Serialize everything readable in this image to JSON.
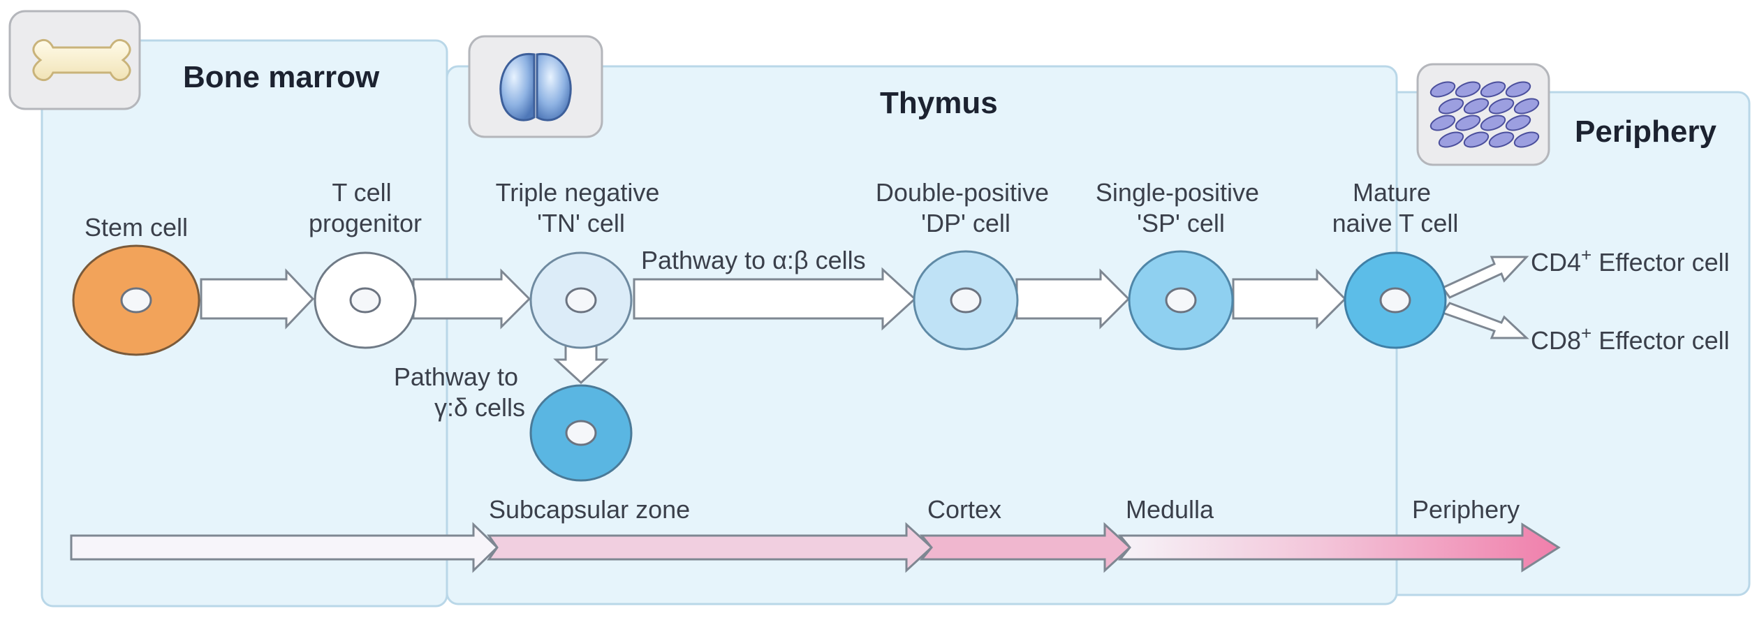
{
  "panels": {
    "bone_marrow": {
      "title": "Bone marrow",
      "icon": "bone-icon"
    },
    "thymus": {
      "title": "Thymus",
      "icon": "thymus-icon"
    },
    "periphery": {
      "title": "Periphery",
      "icon": "tissue-icon"
    }
  },
  "cells": {
    "stem": {
      "label": [
        "Stem cell"
      ],
      "color": "#f2a35a"
    },
    "progenitor": {
      "label": [
        "T cell",
        "progenitor"
      ],
      "color": "#ffffff"
    },
    "tn": {
      "label": [
        "Triple negative",
        "'TN' cell"
      ],
      "color": "#dcecf8"
    },
    "gd": {
      "label": [],
      "color": "#5ab6e2"
    },
    "dp": {
      "label": [
        "Double-positive",
        "'DP' cell"
      ],
      "color": "#bfe2f6"
    },
    "sp": {
      "label": [
        "Single-positive",
        "'SP' cell"
      ],
      "color": "#8fd0f0"
    },
    "mature": {
      "label": [
        "Mature",
        "naive T cell"
      ],
      "color": "#5cbde8"
    }
  },
  "pathways": {
    "ab": "Pathway to α:β cells",
    "gd": [
      "Pathway to",
      "γ:δ cells"
    ]
  },
  "effectors": {
    "cd4": {
      "name": "CD4",
      "sup": "+",
      "suffix": " Effector cell"
    },
    "cd8": {
      "name": "CD8",
      "sup": "+",
      "suffix": " Effector cell"
    }
  },
  "zones": {
    "subcapsular": "Subcapsular zone",
    "cortex": "Cortex",
    "medulla": "Medulla",
    "periphery": "Periphery"
  },
  "colors": {
    "panel_fill": "#e6f4fb",
    "panel_stroke": "#b9d7e8",
    "arrow_fill": "#ffffff",
    "arrow_stroke": "#7e8792",
    "zone_pink": "#f08ab0"
  }
}
